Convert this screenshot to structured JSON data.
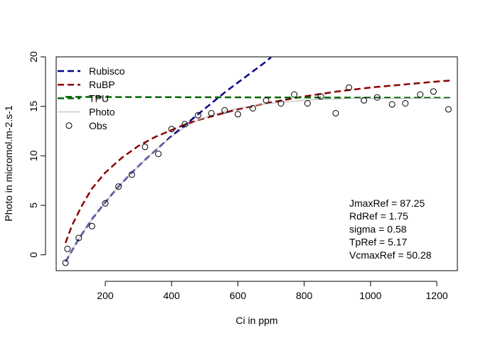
{
  "chart_data": {
    "type": "line",
    "title": "",
    "xlabel": "Ci in ppm",
    "ylabel": "Photo in micromol.m-2.s-1",
    "xlim": [
      52,
      1262
    ],
    "ylim": [
      -1.6,
      20
    ],
    "xticks": [
      200,
      400,
      600,
      800,
      1000,
      1200
    ],
    "yticks": [
      0,
      5,
      10,
      15,
      20
    ],
    "grid": false,
    "legend_position": "top-left",
    "series": [
      {
        "name": "Rubisco",
        "style": "dashed",
        "color": "#00008B",
        "x": [
          80,
          120,
          160,
          200,
          240,
          280,
          320,
          360,
          400,
          440,
          480,
          520,
          560,
          600,
          640,
          680,
          700
        ],
        "y": [
          -0.7,
          1.6,
          3.6,
          5.3,
          6.9,
          8.3,
          9.6,
          10.8,
          12.0,
          13.1,
          14.2,
          15.3,
          16.4,
          17.4,
          18.4,
          19.4,
          19.95
        ]
      },
      {
        "name": "RuBP",
        "style": "dashed",
        "color": "#8B0000",
        "x": [
          80,
          100,
          130,
          160,
          200,
          250,
          300,
          350,
          400,
          450,
          500,
          600,
          700,
          800,
          900,
          1000,
          1100,
          1200,
          1240
        ],
        "y": [
          1.2,
          3.0,
          5.0,
          6.7,
          8.3,
          9.8,
          11.0,
          11.9,
          12.6,
          13.3,
          13.8,
          14.7,
          15.4,
          16.0,
          16.5,
          16.9,
          17.2,
          17.5,
          17.6
        ]
      },
      {
        "name": "TPU",
        "style": "dashed",
        "color": "#006400",
        "x": [
          80,
          1240
        ],
        "y": [
          15.95,
          15.85
        ]
      },
      {
        "name": "Photo",
        "style": "solid",
        "color": "#B3B3B3",
        "x": [
          80,
          120,
          160,
          200,
          240,
          280,
          320,
          360,
          400,
          440,
          480,
          520,
          560,
          600,
          650,
          700,
          760,
          800,
          850,
          900,
          950,
          1000,
          1100,
          1240
        ],
        "y": [
          -0.7,
          1.6,
          3.6,
          5.3,
          6.9,
          8.3,
          9.6,
          10.8,
          11.9,
          12.9,
          13.6,
          14.1,
          14.5,
          14.8,
          15.1,
          15.3,
          15.5,
          15.6,
          15.7,
          15.75,
          15.8,
          15.8,
          15.8,
          15.8
        ]
      },
      {
        "name": "Obs",
        "style": "points",
        "color": "#000000",
        "x": [
          80,
          86,
          120,
          160,
          200,
          240,
          280,
          320,
          360,
          400,
          440,
          480,
          520,
          560,
          600,
          645,
          685,
          730,
          770,
          810,
          850,
          895,
          935,
          980,
          1020,
          1065,
          1105,
          1150,
          1190,
          1235
        ],
        "y": [
          -0.8,
          0.6,
          1.7,
          2.9,
          5.2,
          6.9,
          8.1,
          10.9,
          10.2,
          12.7,
          13.2,
          14.1,
          14.3,
          14.6,
          14.2,
          14.8,
          15.6,
          15.3,
          16.2,
          15.3,
          16.0,
          14.3,
          16.9,
          15.6,
          15.9,
          15.2,
          15.3,
          16.2,
          16.5,
          14.7
        ]
      }
    ],
    "annotations": [
      "JmaxRef = 87.25",
      "RdRef = 1.75",
      "sigma = 0.58",
      "TpRef = 5.17",
      "VcmaxRef = 50.28"
    ]
  }
}
